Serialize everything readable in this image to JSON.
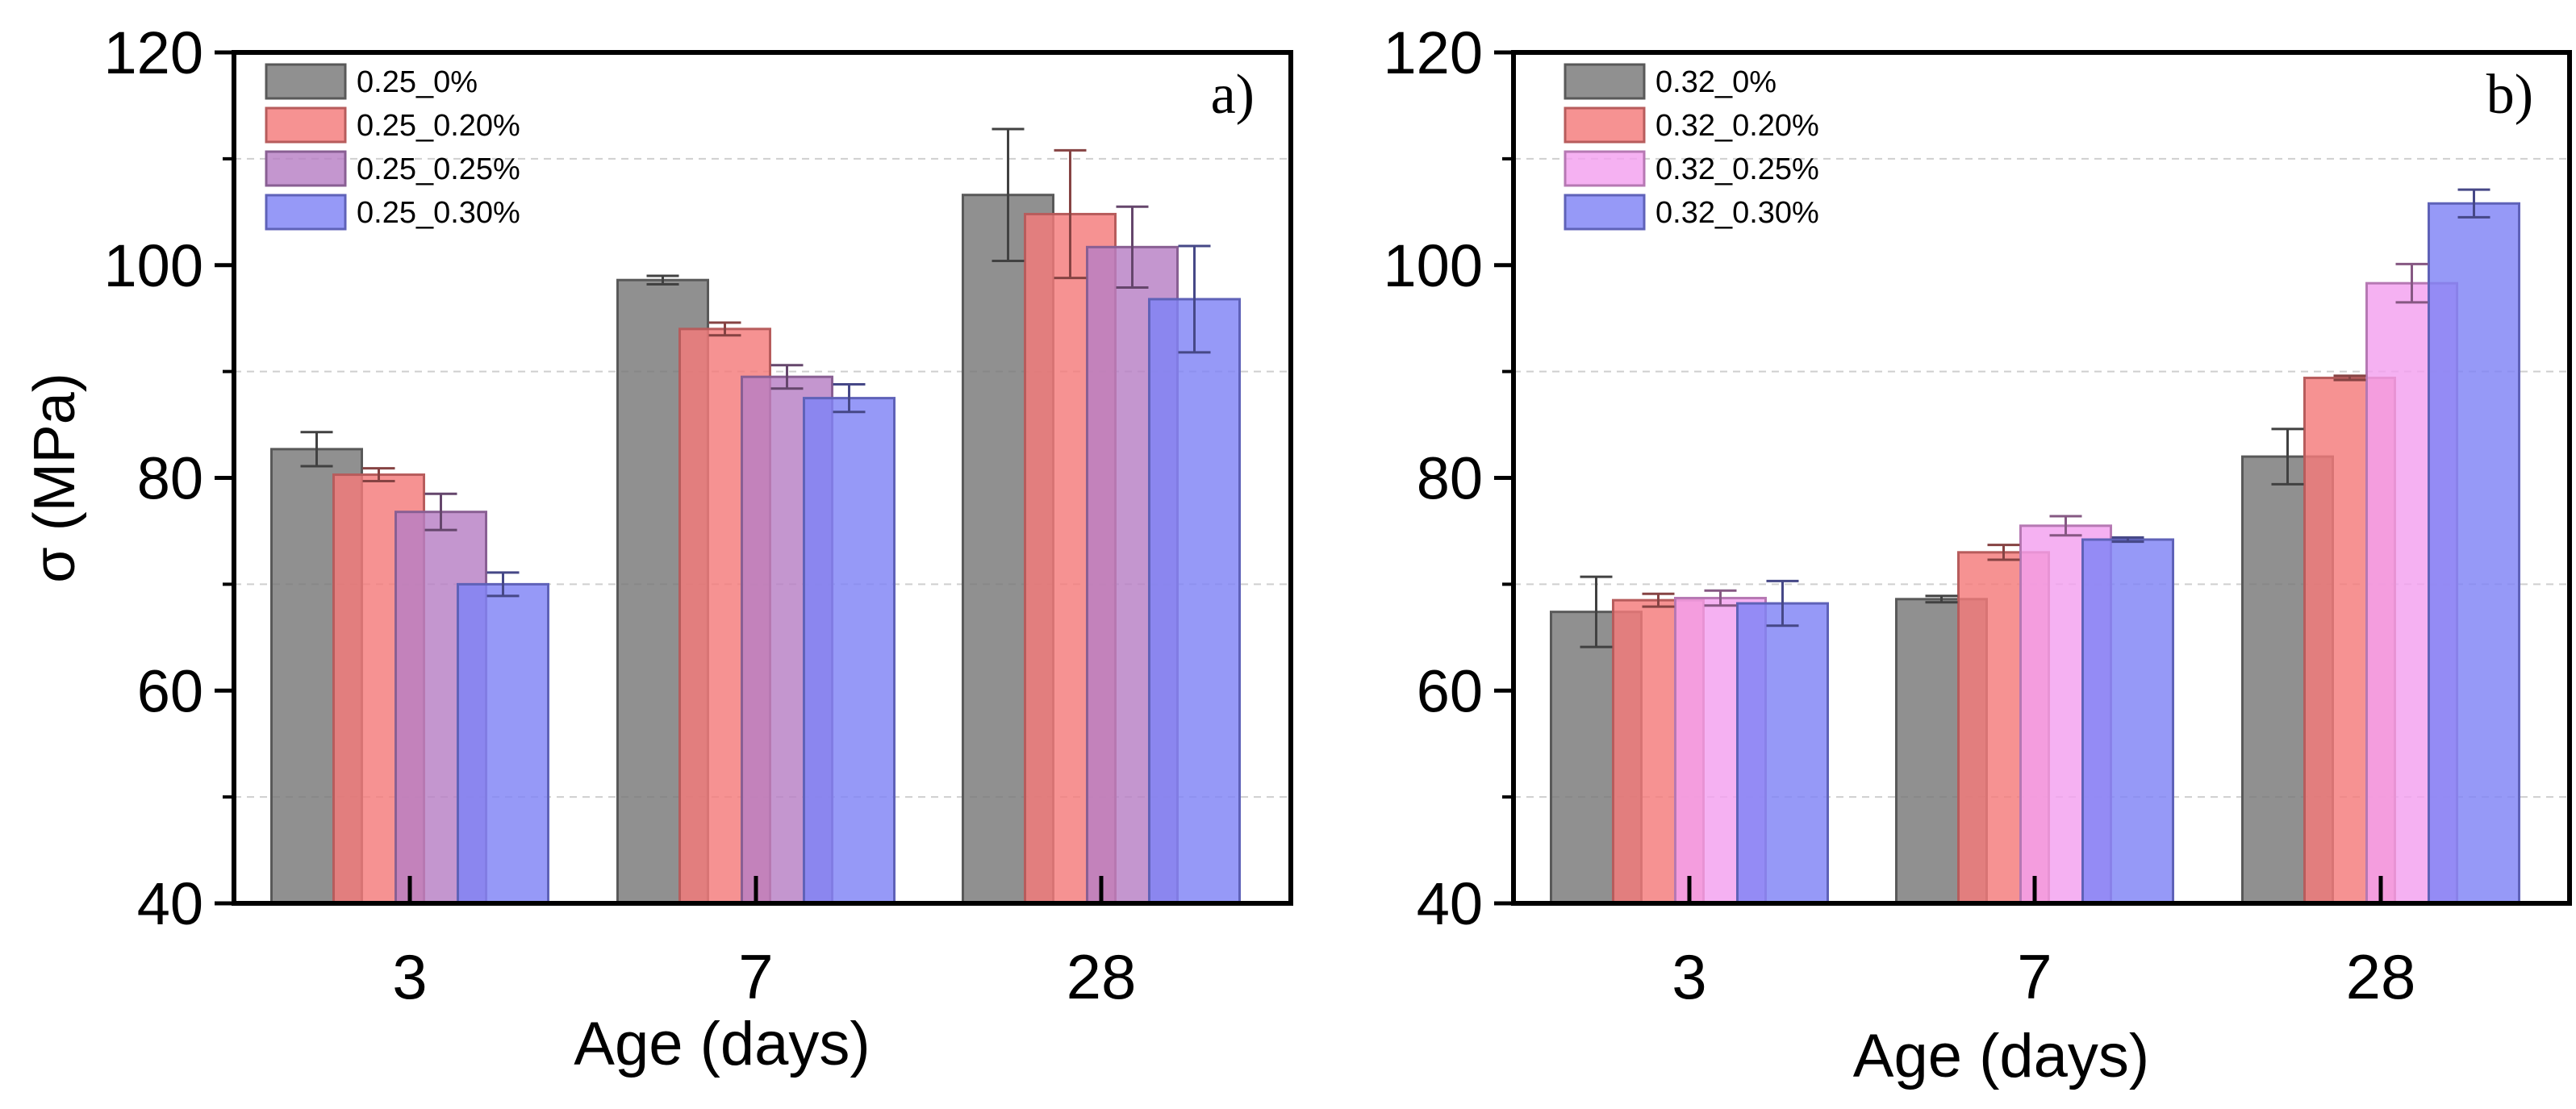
{
  "chart_data": [
    {
      "type": "bar",
      "panel_label": "a)",
      "categories": [
        "3",
        "7",
        "28"
      ],
      "xlabel": "Age (days)",
      "ylabel": "σ (MPa)",
      "ylim": [
        40,
        120
      ],
      "yticks": [
        40,
        60,
        80,
        100,
        120
      ],
      "ytick_labels": [
        "40",
        "60",
        "80",
        "100",
        "120"
      ],
      "grid": "dashed horizontal lines at minor ticks",
      "legend_position": "top-left",
      "series": [
        {
          "name": "0.25_0%",
          "color": "#777777",
          "values": [
            82.7,
            98.6,
            106.6
          ],
          "errors": [
            1.6,
            0.4,
            6.2
          ]
        },
        {
          "name": "0.25_0.20%",
          "color": "#f47a7a",
          "values": [
            80.3,
            94.0,
            104.8
          ],
          "errors": [
            0.6,
            0.6,
            6.0
          ]
        },
        {
          "name": "0.25_0.25%",
          "color": "#b77fc4",
          "values": [
            76.8,
            89.5,
            101.7
          ],
          "errors": [
            1.7,
            1.1,
            3.8
          ]
        },
        {
          "name": "0.25_0.30%",
          "color": "#7f82f5",
          "values": [
            70.0,
            87.5,
            96.8
          ],
          "errors": [
            1.1,
            1.3,
            5.0
          ]
        }
      ]
    },
    {
      "type": "bar",
      "panel_label": "b)",
      "categories": [
        "3",
        "7",
        "28"
      ],
      "xlabel": "Age (days)",
      "ylabel": "",
      "ylim": [
        40,
        120
      ],
      "yticks": [
        40,
        60,
        80,
        100,
        120
      ],
      "ytick_labels": [
        "40",
        "60",
        "80",
        "100",
        "120"
      ],
      "grid": "dashed horizontal lines at minor ticks",
      "legend_position": "top-left",
      "series": [
        {
          "name": "0.32_0%",
          "color": "#777777",
          "values": [
            67.4,
            68.6,
            82.0
          ],
          "errors": [
            3.3,
            0.3,
            2.6
          ]
        },
        {
          "name": "0.32_0.20%",
          "color": "#f47a7a",
          "values": [
            68.5,
            73.0,
            89.4
          ],
          "errors": [
            0.6,
            0.7,
            0.2
          ]
        },
        {
          "name": "0.32_0.25%",
          "color": "#f3a0ef",
          "values": [
            68.7,
            75.5,
            98.3
          ],
          "errors": [
            0.7,
            0.9,
            1.8
          ]
        },
        {
          "name": "0.32_0.30%",
          "color": "#7f82f5",
          "values": [
            68.2,
            74.2,
            105.8
          ],
          "errors": [
            2.1,
            0.2,
            1.3
          ]
        }
      ]
    }
  ]
}
